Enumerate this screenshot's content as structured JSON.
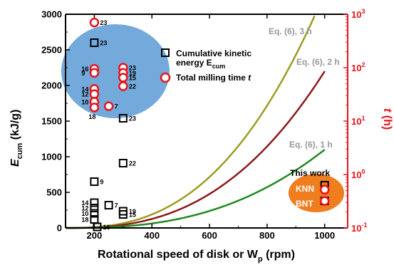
{
  "chart_data": {
    "type": "scatter",
    "xlabel_main": "Rotational speed of disk or W",
    "xlabel_sub": "p",
    "xlabel_unit": " (rpm)",
    "ylabel_main": "E",
    "ylabel_sub": "cum",
    "ylabel_unit": " (kJ/g)",
    "y2label": "t (h)",
    "xlim": [
      100,
      1080
    ],
    "ylim": [
      0,
      3000
    ],
    "y2lim_log10": [
      -1,
      3
    ],
    "y2_scale": "log",
    "xticks": [
      "200",
      "400",
      "600",
      "800",
      "1000"
    ],
    "yticks": [
      "0",
      "500",
      "1000",
      "1500",
      "2000",
      "2500",
      "3000"
    ],
    "y2ticks": [
      {
        "base": "10",
        "exp": "-1"
      },
      {
        "base": "10",
        "exp": "0"
      },
      {
        "base": "10",
        "exp": "1"
      },
      {
        "base": "10",
        "exp": "2"
      },
      {
        "base": "10",
        "exp": "3"
      }
    ],
    "colors": {
      "ecum": "#000000",
      "time": "#e8141b",
      "eq3": "#9c9c24",
      "eq2": "#8b1a1a",
      "eq1": "#1f8a1f",
      "blob_blue": "#5b9bd5",
      "blob_orange": "#f07d1e"
    },
    "ecum_points": [
      {
        "x": 200,
        "y": 2600,
        "label": "23"
      },
      {
        "x": 200,
        "y": 650,
        "label": "9"
      },
      {
        "x": 200,
        "y": 355,
        "label": "14"
      },
      {
        "x": 200,
        "y": 280,
        "label": "12"
      },
      {
        "x": 200,
        "y": 205,
        "label": "10"
      },
      {
        "x": 200,
        "y": 120,
        "label": "18"
      },
      {
        "x": 210,
        "y": 15,
        "label": "16"
      },
      {
        "x": 250,
        "y": 320,
        "label": "7"
      },
      {
        "x": 300,
        "y": 1540,
        "label": "23"
      },
      {
        "x": 300,
        "y": 910,
        "label": "22"
      },
      {
        "x": 300,
        "y": 235,
        "label": "19"
      },
      {
        "x": 300,
        "y": 190,
        "label": "15"
      },
      {
        "x": 1000,
        "y": 600,
        "label": ""
      },
      {
        "x": 1000,
        "y": 380,
        "label": ""
      }
    ],
    "time_points": [
      {
        "x": 200,
        "t": 700,
        "label": "23"
      },
      {
        "x": 200,
        "t": 95,
        "label": "16"
      },
      {
        "x": 200,
        "t": 80,
        "label": "9"
      },
      {
        "x": 200,
        "t": 40,
        "label": "14"
      },
      {
        "x": 200,
        "t": 32,
        "label": "12"
      },
      {
        "x": 200,
        "t": 23,
        "label": "10"
      },
      {
        "x": 200,
        "t": 18,
        "label": "18"
      },
      {
        "x": 250,
        "t": 19,
        "label": "7"
      },
      {
        "x": 300,
        "t": 100,
        "label": "23"
      },
      {
        "x": 300,
        "t": 80,
        "label": "19"
      },
      {
        "x": 300,
        "t": 65,
        "label": "15"
      },
      {
        "x": 300,
        "t": 45,
        "label": "22"
      },
      {
        "x": 1000,
        "t": 0.52,
        "label": ""
      },
      {
        "x": 1000,
        "t": 0.32,
        "label": ""
      }
    ],
    "curves": [
      {
        "name": "Eq. (6), 3 h",
        "hours": 3,
        "color": "#9c9c24",
        "end_x": 970
      },
      {
        "name": "Eq. (6), 2 h",
        "hours": 2,
        "color": "#8b1a1a",
        "end_x": 1000
      },
      {
        "name": "Eq. (6), 1 h",
        "hours": 1,
        "color": "#1f8a1f",
        "end_x": 1000
      }
    ],
    "curve_model": "E = 1100 * (hours) * ((x - 100) / 900)^2.6",
    "legend": [
      {
        "marker": "square",
        "text_line1": "Cumulative kinetic",
        "text_line2": "energy E",
        "text_line2_sub": "cum"
      },
      {
        "marker": "circle",
        "text_line1": "Total milling time ",
        "text_italic": "t"
      }
    ],
    "annotations": {
      "this_work": "This work",
      "knn": "KNN",
      "bnt": "BNT"
    }
  }
}
